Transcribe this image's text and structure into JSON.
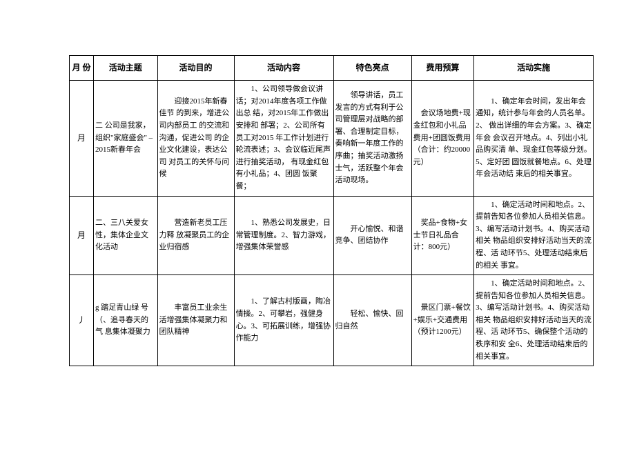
{
  "headers": {
    "month": "月 份",
    "theme": "活动主题",
    "purpose": "活动目的",
    "content": "活动内容",
    "highlight": "特色亮点",
    "budget": "费用预算",
    "impl": "活动实施"
  },
  "rows": [
    {
      "month": "月",
      "theme": "二 公司是我家，组织\"家庭盛会\" –2015新春年会",
      "purpose": "　　迎接2015年新春佳节 的到来，增进公司内部员工 的交流和沟通，促进公司 的企业文化建设，表达公司 对员工的关怀与问候",
      "content": "　　1、公司领导做会议讲话；对2014年度各项工作做出总 结，对2015年工作做出安排和 部署；2、公司所有员工对2015 年工作计划进行轮流表述；3、会议临近尾声进行抽奖活动， 有现金红包有小礼品；4、团圆 饭聚餐；",
      "highlight": "　　领导讲话，员工发言的方式有利于公司管理层对战略的部署、合理制定目标，奏响新一年度工作的序曲；抽奖活动激扬士气，活跃整个年会活动现场。",
      "budget": "　会议场地费+现金红包和小礼品费用+团圆饭费用（合计：约20000元）",
      "impl": "　　1、确定年会时间，发出年会通知，统计参与年会的人员名单。2、 做出详细的年会方案。3、确定年会 会议召开地点。4、列出小礼品购买清 单、现金红包等级分划。5、定好团 圆饭就餐地点。6、处理年会活动结 束后的相关事宜。"
    },
    {
      "month": "月",
      "theme": "二、三八关爱女性，集体企业文化活动",
      "purpose": "　　营造新老员工压力释 放凝聚员工的企业归宿感",
      "content": "　　1、熟悉公司发展史，日常管理制度。2、智力游戏，增强集体荣誉感",
      "highlight": "　　开心愉悦、和谐竞争、团结协作",
      "budget": "　奖品+食物+女士节日礼品合计：800元）",
      "impl": "　　1、确定活动时间和地点。2、提前告知各位参加人员相关信息。3、编写活动计划书。4、购买活动相关 物品组织安排好活动当天的流程、活 动环节5、处理活动结束后的相关 事宜。"
    },
    {
      "month": "丿",
      "theme": "g  踏足青山绿  号（、追寻春天的气 息集体凝聚力",
      "purpose": "　　丰富员工业余生活增强集体凝聚力和团队精神",
      "content": "　　1、了解古村版画，陶冶情操。2、可攀岩，强健身心。3、可拓展训练，增强协作能力",
      "highlight": "　　轻松、愉快、回归自然",
      "budget": "　景区门票+餐饮+娱乐+交通费用（预计1200元）",
      "impl": "　　1、确定活动时间和地点。2、提前告知各位参加人员相关信息。3、编写活动计划书。4、购买活动相关 物品组织安排好活动当天的流程、活 动环节5、确保整个活动的秩序和安 全6、处理活动结束后的相关事宜。"
    }
  ]
}
